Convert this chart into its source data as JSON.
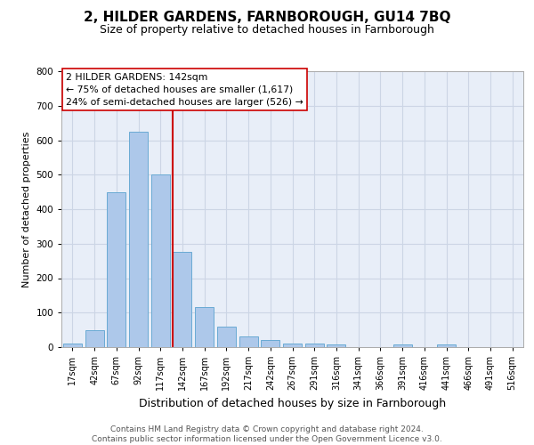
{
  "title1": "2, HILDER GARDENS, FARNBOROUGH, GU14 7BQ",
  "title2": "Size of property relative to detached houses in Farnborough",
  "xlabel": "Distribution of detached houses by size in Farnborough",
  "ylabel": "Number of detached properties",
  "footnote": "Contains HM Land Registry data © Crown copyright and database right 2024.\nContains public sector information licensed under the Open Government Licence v3.0.",
  "bar_labels": [
    "17sqm",
    "42sqm",
    "67sqm",
    "92sqm",
    "117sqm",
    "142sqm",
    "167sqm",
    "192sqm",
    "217sqm",
    "242sqm",
    "267sqm",
    "291sqm",
    "316sqm",
    "341sqm",
    "366sqm",
    "391sqm",
    "416sqm",
    "441sqm",
    "466sqm",
    "491sqm",
    "516sqm"
  ],
  "bar_values": [
    10,
    50,
    450,
    625,
    500,
    275,
    115,
    60,
    30,
    20,
    10,
    10,
    8,
    0,
    0,
    8,
    0,
    8,
    0,
    0,
    0
  ],
  "bar_color": "#adc8ea",
  "bar_edge_color": "#6aaad4",
  "vline_index": 5,
  "vline_color": "#cc0000",
  "annotation_line1": "2 HILDER GARDENS: 142sqm",
  "annotation_line2": "← 75% of detached houses are smaller (1,617)",
  "annotation_line3": "24% of semi-detached houses are larger (526) →",
  "annotation_box_facecolor": "#ffffff",
  "annotation_box_edgecolor": "#cc0000",
  "grid_color": "#ccd5e5",
  "background_color": "#e8eef8",
  "ylim": [
    0,
    800
  ],
  "yticks": [
    0,
    100,
    200,
    300,
    400,
    500,
    600,
    700,
    800
  ],
  "title1_fontsize": 11,
  "title2_fontsize": 9,
  "ylabel_fontsize": 8,
  "xlabel_fontsize": 9,
  "footnote_fontsize": 6.5,
  "annotation_fontsize": 7.8,
  "tick_fontsize": 7.5,
  "xtick_fontsize": 7
}
